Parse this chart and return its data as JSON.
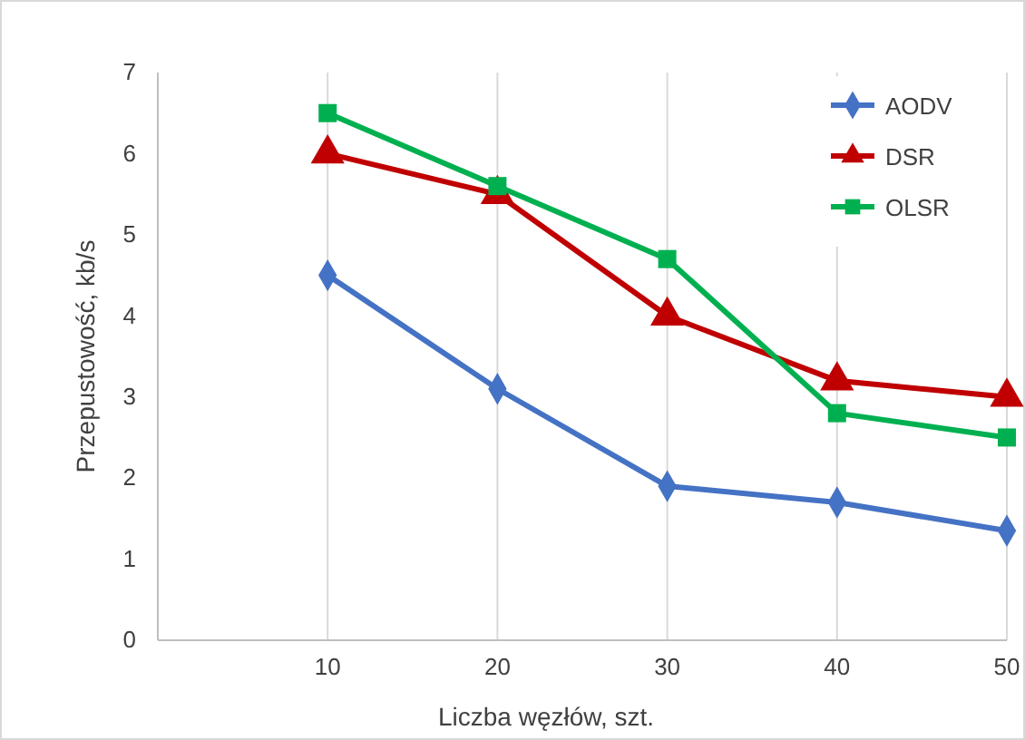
{
  "chart_data": {
    "type": "line",
    "xlabel": "Liczba węzłów, szt.",
    "ylabel": "Przepustowość, kb/s",
    "x": [
      10,
      20,
      30,
      40,
      50
    ],
    "xlim": [
      0,
      50
    ],
    "xticks": [
      10,
      20,
      30,
      40,
      50
    ],
    "ylim": [
      0,
      7
    ],
    "yticks": [
      0,
      1,
      2,
      3,
      4,
      5,
      6,
      7
    ],
    "grid": "x",
    "legend": "top right",
    "series": [
      {
        "name": "AODV",
        "color": "#4472c4",
        "marker": "diamond",
        "values": [
          4.5,
          3.1,
          1.9,
          1.7,
          1.35
        ]
      },
      {
        "name": "DSR",
        "color": "#c00000",
        "marker": "triangle",
        "values": [
          6.0,
          5.5,
          4.0,
          3.2,
          3.0
        ]
      },
      {
        "name": "OLSR",
        "color": "#00b050",
        "marker": "square",
        "values": [
          6.5,
          5.6,
          4.7,
          2.8,
          2.5
        ]
      }
    ]
  }
}
